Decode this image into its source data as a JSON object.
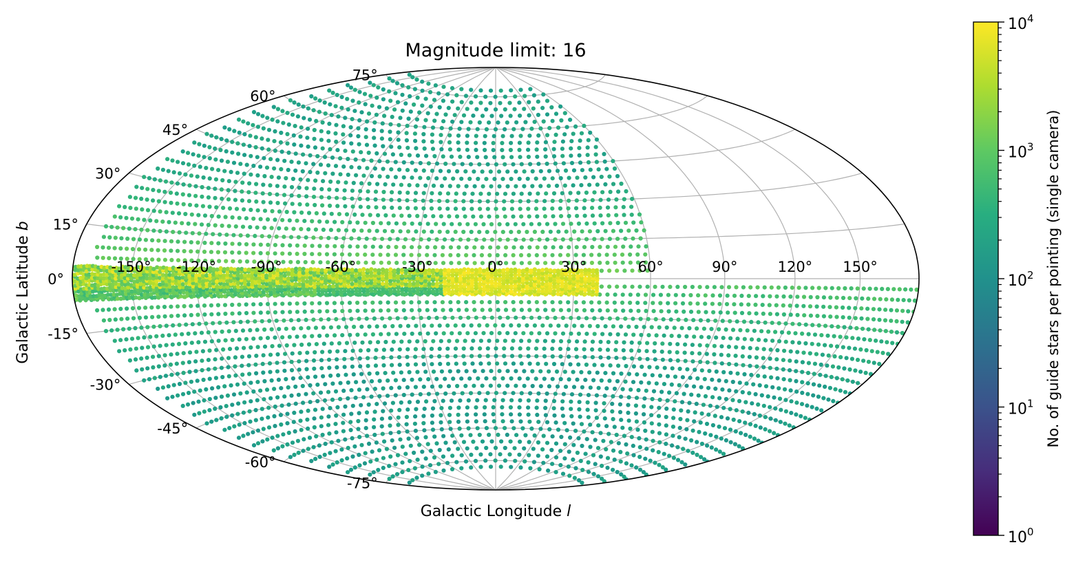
{
  "chart_data": {
    "type": "scatter",
    "projection": "hammer-aitoff",
    "title": "Magnitude limit: 16",
    "xlabel": "Galactic Longitude",
    "xlabel_symbol": "l",
    "ylabel": "Galactic Latitude",
    "ylabel_symbol": "b",
    "grid": true,
    "x_ticks": [
      -150,
      -120,
      -90,
      -60,
      -30,
      0,
      30,
      60,
      90,
      120,
      150
    ],
    "x_tick_labels": [
      "-150°",
      "-120°",
      "-90°",
      "-60°",
      "-30°",
      "0°",
      "30°",
      "60°",
      "90°",
      "120°",
      "150°"
    ],
    "y_ticks": [
      -75,
      -60,
      -45,
      -30,
      -15,
      0,
      15,
      30,
      45,
      60,
      75
    ],
    "y_tick_labels": [
      "-75°",
      "-60°",
      "-45°",
      "-30°",
      "-15°",
      "0°",
      "15°",
      "30°",
      "45°",
      "60°",
      "75°"
    ],
    "colorbar": {
      "label": "No. of guide stars per pointing (single camera)",
      "scale": "log",
      "range": [
        1,
        10000
      ],
      "colormap": "viridis",
      "tick_values": [
        1,
        10,
        100,
        1000,
        10000
      ],
      "tick_base": "10",
      "tick_exponents": [
        "0",
        "1",
        "2",
        "3",
        "4"
      ]
    },
    "points_description": "Pointings in galactic coordinates, colored by log10 star count",
    "regions": [
      {
        "name": "plane-band",
        "l_range": [
          -180,
          40
        ],
        "b_range": [
          -3,
          3
        ],
        "log_count_range": [
          2.9,
          3.9
        ]
      },
      {
        "name": "galactic-center",
        "l_range": [
          -20,
          40
        ],
        "b_range": [
          -6,
          3
        ],
        "log_count_range": [
          3.6,
          4.0
        ]
      },
      {
        "name": "southern-plane-band",
        "l_range": [
          -180,
          -70
        ],
        "b_range": [
          -8,
          -3
        ],
        "log_count_range": [
          2.7,
          3.2
        ]
      },
      {
        "name": "north-sky",
        "l_range": [
          -170,
          60
        ],
        "b_range": [
          3,
          80
        ],
        "log_count_range": [
          2.2,
          3.0
        ]
      },
      {
        "name": "south-sky",
        "l_range": [
          -170,
          180
        ],
        "b_range": [
          -80,
          -3
        ],
        "log_count_range": [
          2.1,
          2.8
        ]
      }
    ]
  }
}
